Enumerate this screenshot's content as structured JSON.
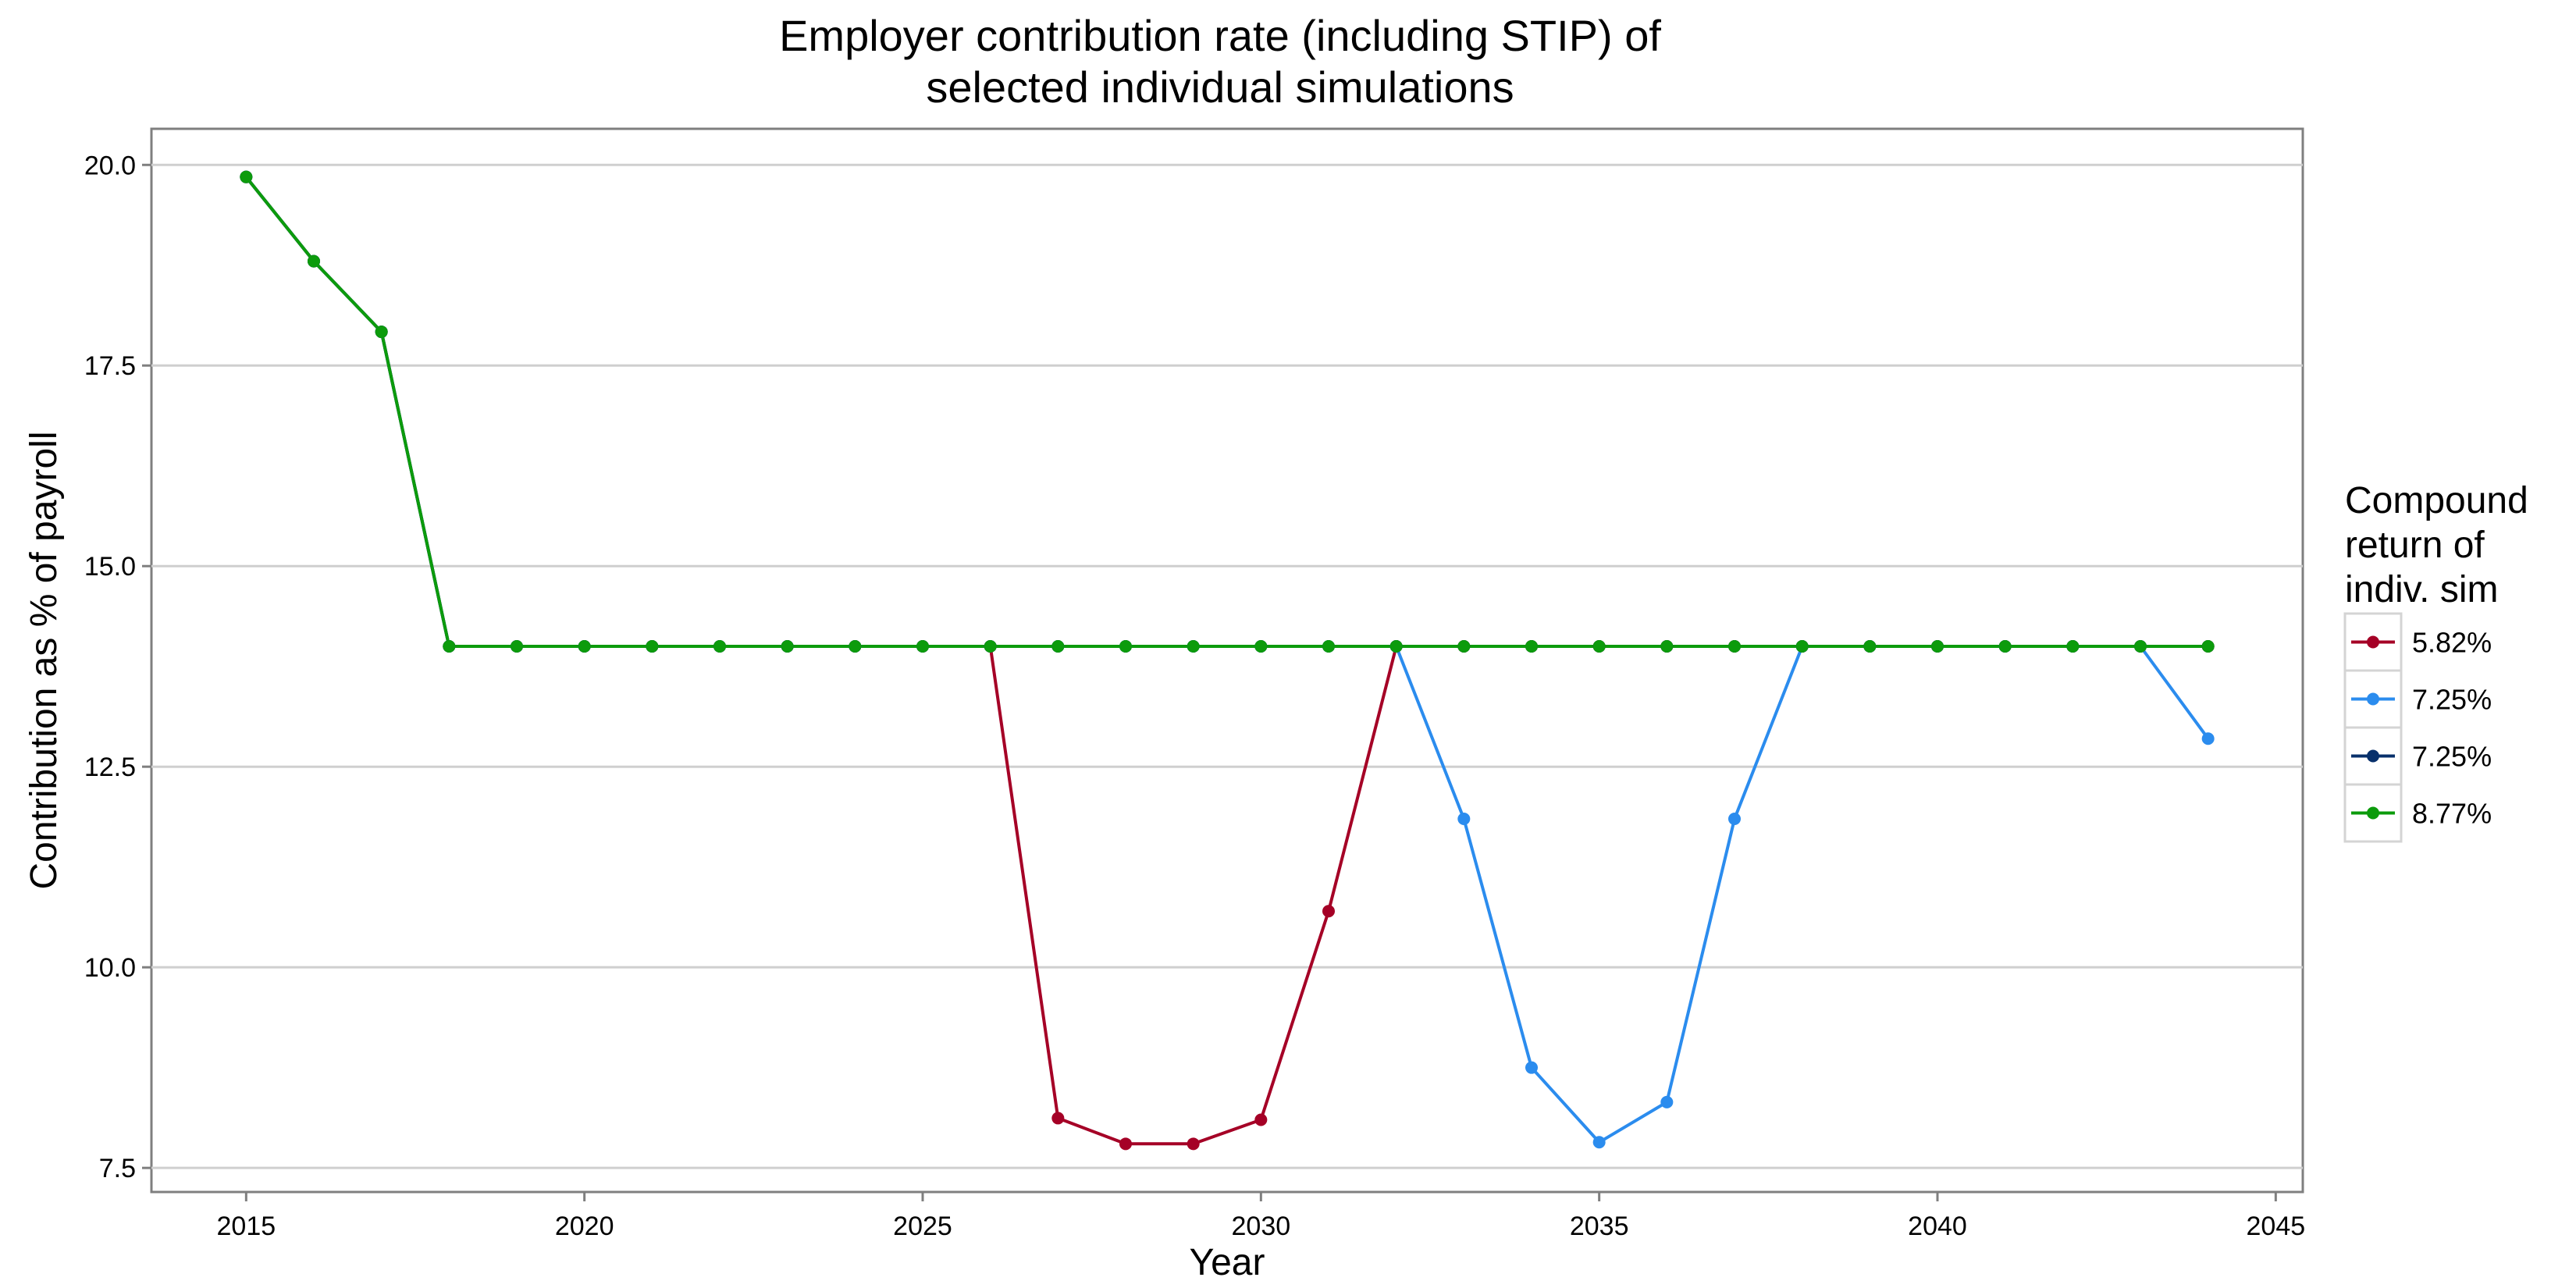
{
  "chart_data": {
    "type": "line",
    "title_lines": [
      "Employer contribution rate (including STIP) of",
      "selected individual simulations"
    ],
    "xlabel": "Year",
    "ylabel": "Contribution as % of payroll",
    "xlim": [
      2013.6,
      2045.4
    ],
    "ylim": [
      7.2,
      20.45
    ],
    "x_ticks": [
      2015,
      2020,
      2025,
      2030,
      2035,
      2040,
      2045
    ],
    "x_tick_labels": [
      "2015",
      "2020",
      "2025",
      "2030",
      "2035",
      "2040",
      "2045"
    ],
    "y_ticks": [
      7.5,
      10.0,
      12.5,
      15.0,
      17.5,
      20.0
    ],
    "y_tick_labels": [
      "7.5",
      "10.0",
      "12.5",
      "15.0",
      "17.5",
      "20.0"
    ],
    "grid": "horizontal major lines",
    "legend_placement": "right",
    "legend_title_lines": [
      "Compound",
      "return of",
      "indiv. sim"
    ],
    "x": [
      2015,
      2016,
      2017,
      2018,
      2019,
      2020,
      2021,
      2022,
      2023,
      2024,
      2025,
      2026,
      2027,
      2028,
      2029,
      2030,
      2031,
      2032,
      2033,
      2034,
      2035,
      2036,
      2037,
      2038,
      2039,
      2040,
      2041,
      2042,
      2043,
      2044
    ],
    "series": [
      {
        "name": "5.82%",
        "color": "#a50026",
        "values": [
          19.85,
          18.8,
          17.92,
          14.0,
          14.0,
          14.0,
          14.0,
          14.0,
          14.0,
          14.0,
          14.0,
          14.0,
          8.12,
          7.8,
          7.8,
          8.1,
          10.7,
          14.0,
          14.0,
          14.0,
          14.0,
          14.0,
          14.0,
          14.0,
          14.0,
          14.0,
          14.0,
          14.0,
          14.0,
          14.0
        ]
      },
      {
        "name": "7.25%",
        "color": "#2b8cee",
        "values": [
          19.85,
          18.8,
          17.92,
          14.0,
          14.0,
          14.0,
          14.0,
          14.0,
          14.0,
          14.0,
          14.0,
          14.0,
          14.0,
          14.0,
          14.0,
          14.0,
          14.0,
          14.0,
          11.85,
          8.75,
          7.82,
          8.32,
          11.85,
          14.0,
          14.0,
          14.0,
          14.0,
          14.0,
          14.0,
          12.85
        ]
      },
      {
        "name": "7.25%",
        "color": "#08306b",
        "values": [
          19.85,
          18.8,
          17.92,
          14.0,
          14.0,
          14.0,
          14.0,
          14.0,
          14.0,
          14.0,
          14.0,
          14.0,
          14.0,
          14.0,
          14.0,
          14.0,
          14.0,
          14.0,
          14.0,
          14.0,
          14.0,
          14.0,
          14.0,
          14.0,
          14.0,
          14.0,
          14.0,
          14.0,
          14.0,
          14.0
        ]
      },
      {
        "name": "8.77%",
        "color": "#0c9b0c",
        "values": [
          19.85,
          18.8,
          17.92,
          14.0,
          14.0,
          14.0,
          14.0,
          14.0,
          14.0,
          14.0,
          14.0,
          14.0,
          14.0,
          14.0,
          14.0,
          14.0,
          14.0,
          14.0,
          14.0,
          14.0,
          14.0,
          14.0,
          14.0,
          14.0,
          14.0,
          14.0,
          14.0,
          14.0,
          14.0,
          14.0
        ]
      }
    ]
  }
}
